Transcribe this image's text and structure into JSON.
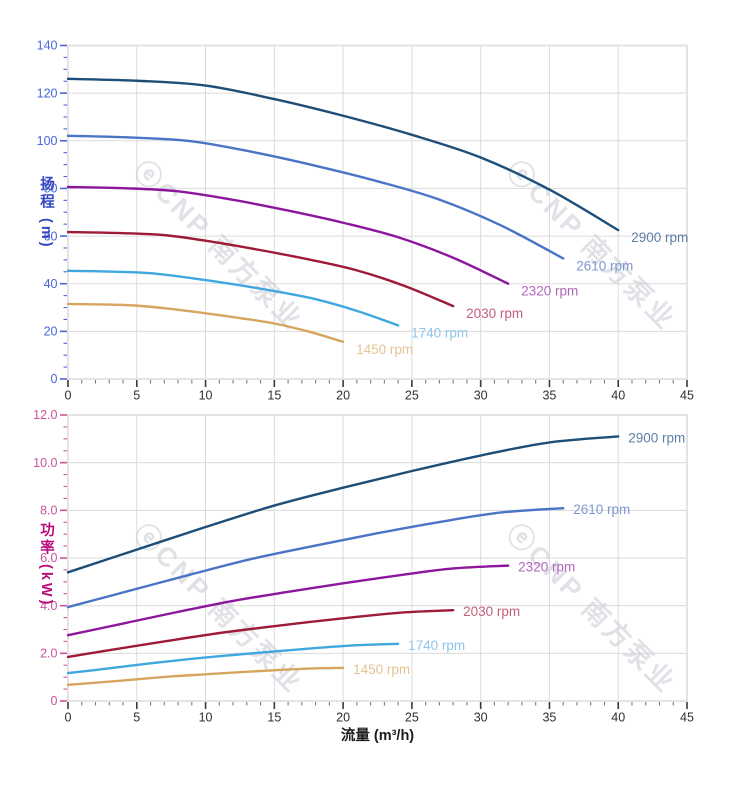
{
  "page_bg": "#FFFFFF",
  "axis_text_color": "#2F2F2F",
  "grid_color": "#DBDBDB",
  "border_color": "#E3E3E3",
  "watermark": {
    "logo_glyph": "ⓔ",
    "text": "CNP 南方泵业",
    "color": "#C9CCD4"
  },
  "chart_data": [
    {
      "type": "line",
      "title": "",
      "xlabel": "",
      "ylabel": "扬程 (m)",
      "xlim": [
        0,
        45
      ],
      "ylim": [
        0,
        140
      ],
      "x_major_step": 5,
      "x_minor_step": 1,
      "y_major_step": 20,
      "y_minor_step": 5,
      "grid": true,
      "legend_position": "line-end-labels",
      "x_tick_labels": [
        "0",
        "5",
        "10",
        "15",
        "20",
        "25",
        "30",
        "35",
        "40",
        "45"
      ],
      "y_tick_labels": [
        "0",
        "20",
        "40",
        "60",
        "80",
        "100",
        "120",
        "140"
      ],
      "axis_color": {
        "title": "#3347C2",
        "tick": "#4A66D6"
      },
      "series": [
        {
          "name": "2900 rpm",
          "color": "#1C4E78",
          "label_color": "#5E7EA6",
          "points": [
            [
              0,
              126
            ],
            [
              5,
              125.2
            ],
            [
              10,
              123.2
            ],
            [
              15,
              117.5
            ],
            [
              20,
              110.5
            ],
            [
              25,
              102.5
            ],
            [
              30,
              93
            ],
            [
              35,
              79.5
            ],
            [
              40,
              62.5
            ]
          ]
        },
        {
          "name": "2610 rpm",
          "color": "#4A74C6",
          "label_color": "#7E98CE",
          "points": [
            [
              0,
              102.1
            ],
            [
              4.5,
              101.4
            ],
            [
              9,
              99.8
            ],
            [
              13.5,
              95.2
            ],
            [
              18,
              89.5
            ],
            [
              22.5,
              83
            ],
            [
              27,
              75.3
            ],
            [
              31.5,
              64.4
            ],
            [
              36,
              50.6
            ]
          ]
        },
        {
          "name": "2320 rpm",
          "color": "#8C169C",
          "label_color": "#B166BA",
          "points": [
            [
              0,
              80.6
            ],
            [
              4,
              80.1
            ],
            [
              8,
              78.8
            ],
            [
              12,
              75.2
            ],
            [
              16,
              70.7
            ],
            [
              20,
              65.6
            ],
            [
              24,
              59.5
            ],
            [
              28,
              50.9
            ],
            [
              32,
              40
            ]
          ]
        },
        {
          "name": "2030 rpm",
          "color": "#9E1A36",
          "label_color": "#C2607A",
          "points": [
            [
              0,
              61.7
            ],
            [
              3.5,
              61.3
            ],
            [
              7,
              60.4
            ],
            [
              10.5,
              57.6
            ],
            [
              14,
              54.1
            ],
            [
              17.5,
              50.2
            ],
            [
              21,
              45.6
            ],
            [
              24.5,
              39
            ],
            [
              28,
              30.6
            ]
          ]
        },
        {
          "name": "1740 rpm",
          "color": "#3FA8DF",
          "label_color": "#8FC7EC",
          "points": [
            [
              0,
              45.4
            ],
            [
              3,
              45.1
            ],
            [
              6,
              44.4
            ],
            [
              9,
              42.3
            ],
            [
              12,
              39.8
            ],
            [
              15,
              36.9
            ],
            [
              18,
              33.5
            ],
            [
              21,
              28.6
            ],
            [
              24,
              22.5
            ]
          ]
        },
        {
          "name": "1450 rpm",
          "color": "#D8A55E",
          "label_color": "#E3C493",
          "points": [
            [
              0,
              31.5
            ],
            [
              2.5,
              31.3
            ],
            [
              5,
              30.8
            ],
            [
              7.5,
              29.4
            ],
            [
              10,
              27.6
            ],
            [
              12.5,
              25.6
            ],
            [
              15,
              23.3
            ],
            [
              17.5,
              19.9
            ],
            [
              20,
              15.6
            ]
          ]
        }
      ]
    },
    {
      "type": "line",
      "title": "",
      "xlabel": "流量 (m³/h)",
      "ylabel": "功率 (kW)",
      "xlim": [
        0,
        45
      ],
      "ylim": [
        0,
        12
      ],
      "x_major_step": 5,
      "x_minor_step": 1,
      "y_major_step": 2,
      "y_minor_step": 0.5,
      "grid": true,
      "legend_position": "line-end-labels",
      "x_tick_labels": [
        "0",
        "5",
        "10",
        "15",
        "20",
        "25",
        "30",
        "35",
        "40",
        "45"
      ],
      "y_tick_labels": [
        "0",
        "2.0",
        "4.0",
        "6.0",
        "8.0",
        "10.0",
        "12.0"
      ],
      "axis_color": {
        "title": "#B90D7E",
        "tick": "#C8539F"
      },
      "series": [
        {
          "name": "2900 rpm",
          "color": "#1C4E78",
          "label_color": "#5E7EA6",
          "points": [
            [
              0,
              5.4
            ],
            [
              5,
              6.35
            ],
            [
              10,
              7.3
            ],
            [
              15,
              8.2
            ],
            [
              20,
              8.95
            ],
            [
              25,
              9.65
            ],
            [
              30,
              10.3
            ],
            [
              35,
              10.85
            ],
            [
              40,
              11.1
            ]
          ]
        },
        {
          "name": "2610 rpm",
          "color": "#4A74C6",
          "label_color": "#7E98CE",
          "points": [
            [
              0,
              3.94
            ],
            [
              4.5,
              4.63
            ],
            [
              9,
              5.32
            ],
            [
              13.5,
              5.98
            ],
            [
              18,
              6.52
            ],
            [
              22.5,
              7.04
            ],
            [
              27,
              7.51
            ],
            [
              31.5,
              7.91
            ],
            [
              36,
              8.09
            ]
          ]
        },
        {
          "name": "2320 rpm",
          "color": "#8C169C",
          "label_color": "#B166BA",
          "points": [
            [
              0,
              2.76
            ],
            [
              4,
              3.25
            ],
            [
              8,
              3.74
            ],
            [
              12,
              4.2
            ],
            [
              16,
              4.58
            ],
            [
              20,
              4.94
            ],
            [
              24,
              5.27
            ],
            [
              28,
              5.56
            ],
            [
              32,
              5.68
            ]
          ]
        },
        {
          "name": "2030 rpm",
          "color": "#9E1A36",
          "label_color": "#C2607A",
          "points": [
            [
              0,
              1.85
            ],
            [
              3.5,
              2.18
            ],
            [
              7,
              2.5
            ],
            [
              10.5,
              2.81
            ],
            [
              14,
              3.07
            ],
            [
              17.5,
              3.31
            ],
            [
              21,
              3.53
            ],
            [
              24.5,
              3.72
            ],
            [
              28,
              3.81
            ]
          ]
        },
        {
          "name": "1740 rpm",
          "color": "#3FA8DF",
          "label_color": "#8FC7EC",
          "points": [
            [
              0,
              1.17
            ],
            [
              3,
              1.37
            ],
            [
              6,
              1.58
            ],
            [
              9,
              1.77
            ],
            [
              12,
              1.93
            ],
            [
              15,
              2.08
            ],
            [
              18,
              2.22
            ],
            [
              21,
              2.34
            ],
            [
              24,
              2.4
            ]
          ]
        },
        {
          "name": "1450 rpm",
          "color": "#D8A55E",
          "label_color": "#E3C493",
          "points": [
            [
              0,
              0.68
            ],
            [
              2.5,
              0.79
            ],
            [
              5,
              0.91
            ],
            [
              7.5,
              1.03
            ],
            [
              10,
              1.12
            ],
            [
              12.5,
              1.21
            ],
            [
              15,
              1.29
            ],
            [
              17.5,
              1.36
            ],
            [
              20,
              1.39
            ]
          ]
        }
      ]
    }
  ]
}
